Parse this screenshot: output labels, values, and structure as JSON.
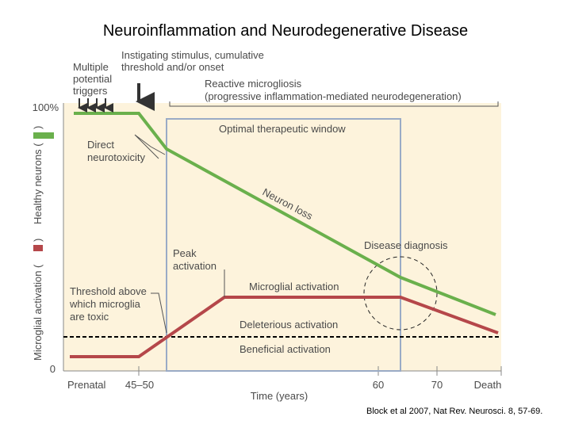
{
  "title": "Neuroinflammation and Neurodegenerative Disease",
  "y_axis": {
    "top": "100%",
    "bottom": "0",
    "label_lower": "Microglial activation (",
    "label_lower_end": ")",
    "label_upper": "Healthy neurons (",
    "label_upper_end": ")"
  },
  "x_axis": {
    "title": "Time (years)",
    "ticks": [
      "Prenatal",
      "45–50",
      "60",
      "70",
      "Death"
    ]
  },
  "annotations": {
    "triggers": [
      "Multiple",
      "potential",
      "triggers"
    ],
    "stimulus": [
      "Instigating stimulus, cumulative",
      "threshold and/or onset"
    ],
    "microgliosis": [
      "Reactive microgliosis",
      "(progressive inflammation-mediated neurodegeneration)"
    ],
    "window": "Optimal therapeutic window",
    "neurotoxicity": [
      "Direct",
      "neurotoxicity"
    ],
    "neuron_loss": "Neuron loss",
    "diagnosis": "Disease diagnosis",
    "peak": [
      "Peak",
      "activation"
    ],
    "microglial_activation": "Microglial activation",
    "threshold": [
      "Threshold above",
      "which microglia",
      "are toxic"
    ],
    "deleterious": "Deleterious activation",
    "beneficial": "Beneficial activation"
  },
  "citation": "Block et al 2007, Nat Rev. Neurosci. 8, 57-69."
}
